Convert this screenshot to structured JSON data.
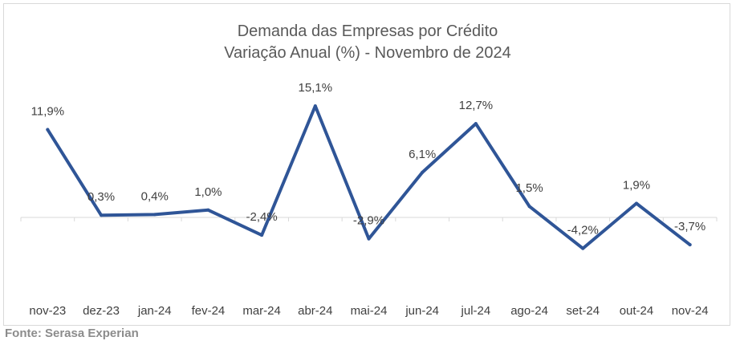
{
  "chart_data": {
    "type": "line",
    "title": "Demanda das Empresas por Crédito",
    "subtitle": "Variação Anual (%) - Novembro de 2024",
    "categories": [
      "nov-23",
      "dez-23",
      "jan-24",
      "fev-24",
      "mar-24",
      "abr-24",
      "mai-24",
      "jun-24",
      "jul-24",
      "ago-24",
      "set-24",
      "out-24",
      "nov-24"
    ],
    "series": [
      {
        "values": [
          11.9,
          0.3,
          0.4,
          1.0,
          -2.4,
          15.1,
          -2.9,
          6.1,
          12.7,
          1.5,
          -4.2,
          1.9,
          -3.7
        ],
        "labels": [
          "11,9%",
          "0,3%",
          "0,4%",
          "1,0%",
          "-2,4%",
          "15,1%",
          "-2,9%",
          "6,1%",
          "12,7%",
          "1,5%",
          "-4,2%",
          "1,9%",
          "-3,7%"
        ],
        "color": "#2f5597"
      }
    ],
    "xlabel": "",
    "ylabel": "",
    "ylim": [
      -10,
      17
    ],
    "grid": false,
    "legend": "none"
  },
  "source": "Fonte: Serasa Experian"
}
